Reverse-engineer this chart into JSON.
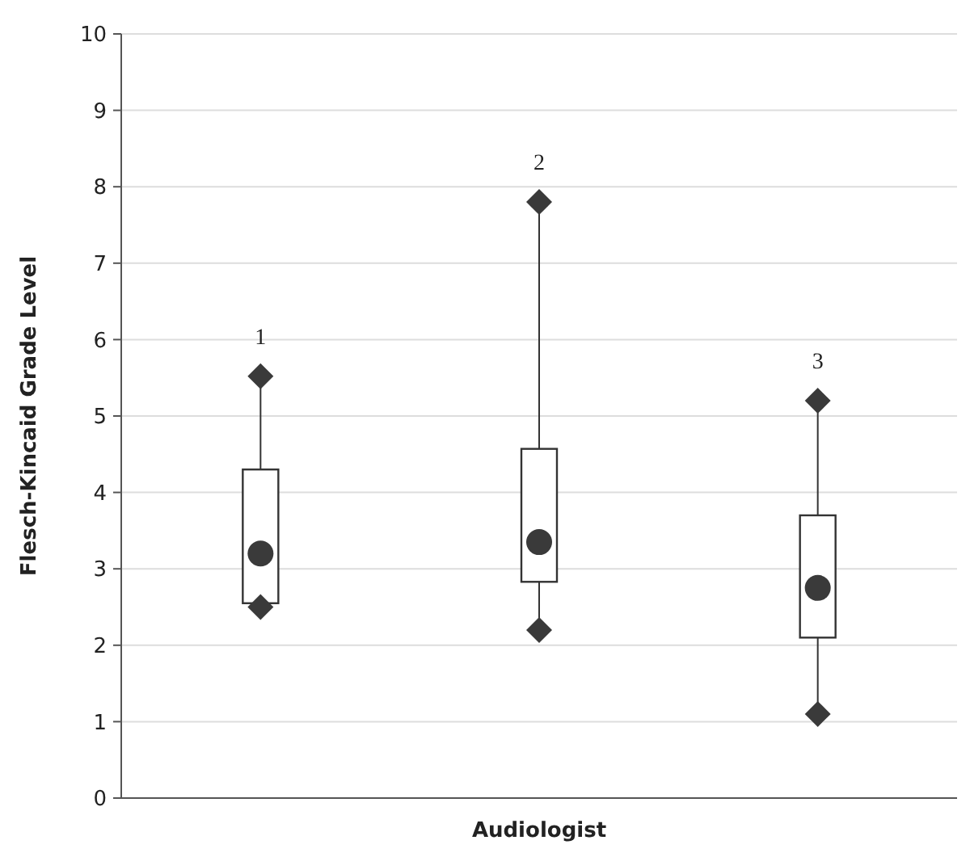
{
  "chart_data": {
    "type": "box",
    "xlabel": "Audiologist",
    "ylabel": "Flesch-Kincaid Grade Level",
    "categories": [
      "1",
      "2",
      "3"
    ],
    "boxes": [
      {
        "low": 2.5,
        "q1": 2.55,
        "median": 3.2,
        "q3": 4.3,
        "high": 5.52
      },
      {
        "low": 2.2,
        "q1": 2.83,
        "median": 3.35,
        "q3": 4.57,
        "high": 7.8
      },
      {
        "low": 1.1,
        "q1": 2.1,
        "median": 2.75,
        "q3": 3.7,
        "high": 5.2
      }
    ],
    "series": [
      {
        "type": "scatter",
        "marker": "diamond",
        "color": "#3a3a3a",
        "x": [
          "1",
          "2",
          "3"
        ],
        "values": [
          5.52,
          7.8,
          5.2
        ]
      },
      {
        "type": "scatter",
        "marker": "diamond",
        "color": "#3a3a3a",
        "x": [
          "1",
          "2",
          "3"
        ],
        "values": [
          2.5,
          2.2,
          1.1
        ]
      }
    ],
    "ylim": [
      0,
      10
    ],
    "yticks": [
      0,
      1,
      2,
      3,
      4,
      5,
      6,
      7,
      8,
      9,
      10
    ],
    "grid": "y"
  }
}
